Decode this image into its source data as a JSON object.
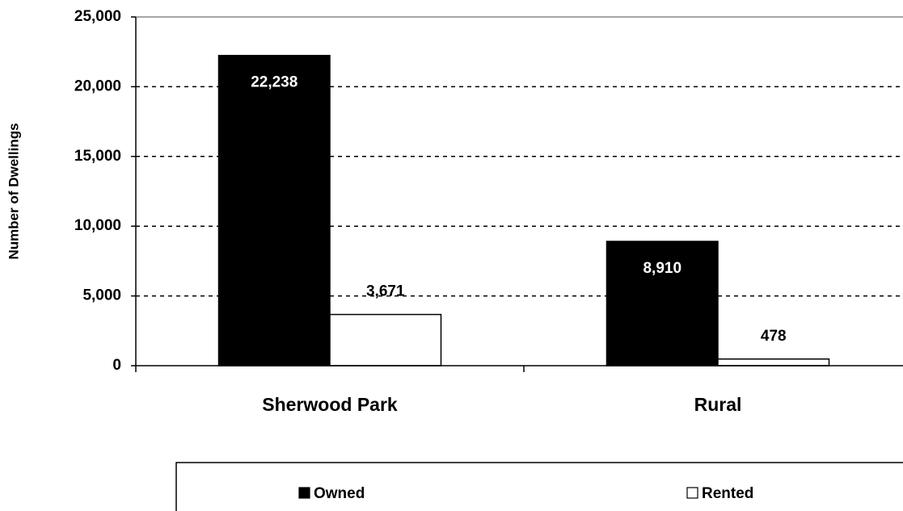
{
  "chart_data": {
    "type": "bar",
    "y_axis_label": "Number of Dwellings",
    "categories": [
      "Sherwood Park",
      "Rural"
    ],
    "series": [
      {
        "name": "Owned",
        "color": "#000000",
        "values": [
          22238,
          8910
        ],
        "value_labels": [
          "22,238",
          "8,910"
        ]
      },
      {
        "name": "Rented",
        "color": "#ffffff",
        "values": [
          3671,
          478
        ],
        "value_labels": [
          "3,671",
          "478"
        ]
      }
    ],
    "ylim": [
      0,
      25000
    ],
    "yticks": [
      0,
      {
        "value": 5000,
        "label": "5,000"
      },
      {
        "value": 10000,
        "label": "10,000"
      },
      {
        "value": 15000,
        "label": "15,000"
      },
      {
        "value": 20000,
        "label": "20,000"
      },
      {
        "value": 25000,
        "label": "25,000"
      }
    ],
    "grid": true,
    "legend": "bottom"
  }
}
